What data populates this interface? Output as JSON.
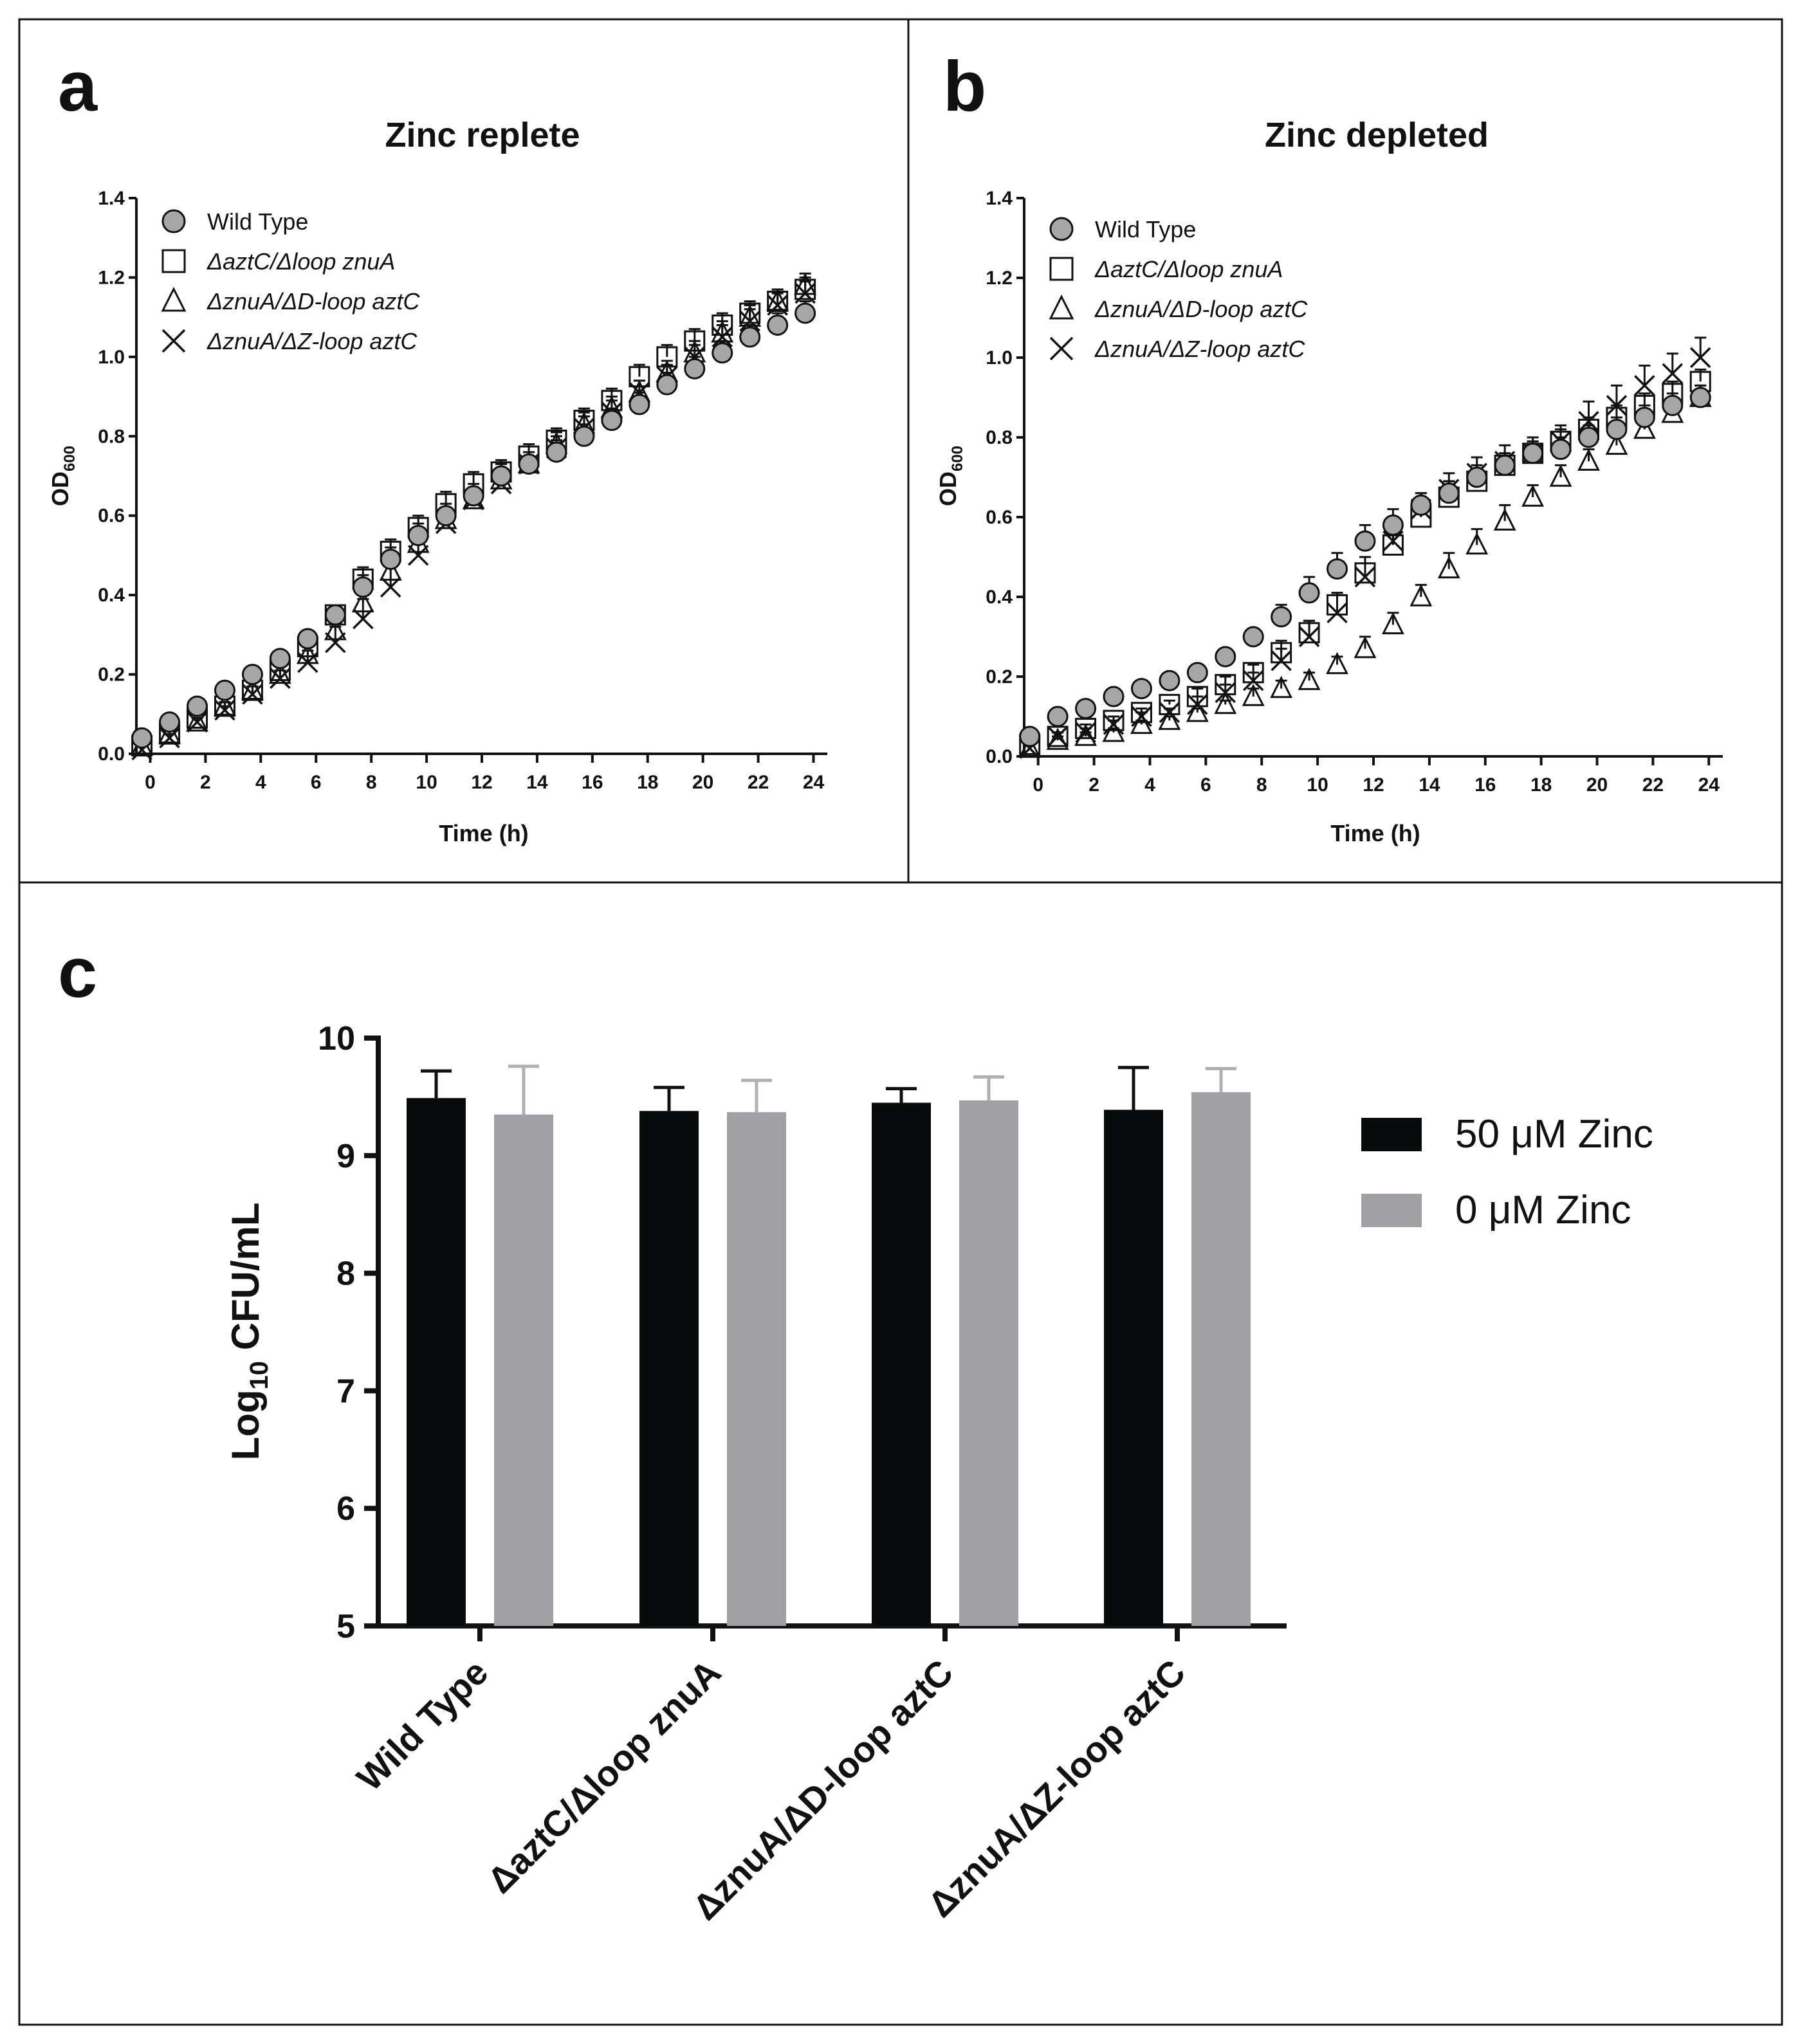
{
  "panels": {
    "a": "a",
    "b": "b",
    "c": "c"
  },
  "colors": {
    "wt_fill": "#a6a6a6",
    "bar50": "#070b0c",
    "bar0": "#a1a1a5",
    "err0": "#b0b0b0"
  },
  "line_legend": [
    {
      "symbol": "circle",
      "label": "Wild Type"
    },
    {
      "symbol": "square",
      "label": "ΔaztC/Δloop znuA"
    },
    {
      "symbol": "triangle",
      "label": "ΔznuA/ΔD-loop aztC"
    },
    {
      "symbol": "cross",
      "label": "ΔznuA/ΔZ-loop aztC"
    }
  ],
  "chart_data": [
    {
      "type": "scatter",
      "panel": "a",
      "title": "Zinc replete",
      "xlabel": "Time (h)",
      "ylabel_main": "OD",
      "ylabel_sub": "600",
      "xlim": [
        -0.5,
        24.5
      ],
      "ylim": [
        0,
        1.4
      ],
      "xticks": [
        0,
        2,
        4,
        6,
        8,
        10,
        12,
        14,
        16,
        18,
        20,
        22,
        24
      ],
      "yticks": [
        0.0,
        0.2,
        0.4,
        0.6,
        0.8,
        1.0,
        1.2,
        1.4
      ],
      "ytick_labels": [
        "0.0",
        "0.2",
        "0.4",
        "0.6",
        "0.8",
        "1.0",
        "1.2",
        "1.4"
      ],
      "x": [
        -0.3,
        0.7,
        1.7,
        2.7,
        3.7,
        4.7,
        5.7,
        6.7,
        7.7,
        8.7,
        9.7,
        10.7,
        11.7,
        12.7,
        13.7,
        14.7,
        15.7,
        16.7,
        17.7,
        18.7,
        19.7,
        20.7,
        21.7,
        22.7,
        23.7
      ],
      "series": [
        {
          "name": "Wild Type",
          "marker": "circle",
          "values": [
            0.04,
            0.08,
            0.12,
            0.16,
            0.2,
            0.24,
            0.29,
            0.35,
            0.42,
            0.49,
            0.55,
            0.6,
            0.65,
            0.7,
            0.73,
            0.76,
            0.8,
            0.84,
            0.88,
            0.93,
            0.97,
            1.01,
            1.05,
            1.08,
            1.11
          ],
          "err": [
            0.01,
            0.01,
            0.01,
            0.01,
            0.02,
            0.02,
            0.02,
            0.02,
            0.03,
            0.03,
            0.03,
            0.03,
            0.03,
            0.03,
            0.03,
            0.03,
            0.03,
            0.03,
            0.03,
            0.03,
            0.03,
            0.03,
            0.03,
            0.03,
            0.03
          ]
        },
        {
          "name": "ΔaztC/Δloop znuA",
          "marker": "square",
          "values": [
            0.02,
            0.05,
            0.09,
            0.12,
            0.16,
            0.21,
            0.27,
            0.35,
            0.44,
            0.51,
            0.57,
            0.63,
            0.68,
            0.71,
            0.75,
            0.79,
            0.84,
            0.89,
            0.95,
            1.0,
            1.04,
            1.08,
            1.11,
            1.14,
            1.17
          ],
          "err": [
            0.01,
            0.01,
            0.01,
            0.01,
            0.02,
            0.02,
            0.02,
            0.02,
            0.03,
            0.03,
            0.03,
            0.03,
            0.03,
            0.03,
            0.03,
            0.03,
            0.03,
            0.03,
            0.03,
            0.03,
            0.03,
            0.03,
            0.03,
            0.03,
            0.03
          ]
        },
        {
          "name": "ΔznuA/ΔD-loop aztC",
          "marker": "triangle",
          "values": [
            0.02,
            0.05,
            0.08,
            0.12,
            0.16,
            0.2,
            0.25,
            0.31,
            0.38,
            0.46,
            0.53,
            0.59,
            0.64,
            0.69,
            0.73,
            0.78,
            0.83,
            0.87,
            0.91,
            0.96,
            1.01,
            1.06,
            1.1,
            1.14,
            1.18
          ],
          "err": [
            0.01,
            0.01,
            0.01,
            0.01,
            0.02,
            0.02,
            0.02,
            0.02,
            0.03,
            0.03,
            0.03,
            0.03,
            0.03,
            0.03,
            0.03,
            0.03,
            0.03,
            0.03,
            0.03,
            0.03,
            0.03,
            0.03,
            0.03,
            0.03,
            0.03
          ]
        },
        {
          "name": "ΔznuA/ΔZ-loop aztC",
          "marker": "cross",
          "values": [
            0.01,
            0.04,
            0.08,
            0.11,
            0.15,
            0.19,
            0.23,
            0.28,
            0.34,
            0.42,
            0.5,
            0.58,
            0.64,
            0.68,
            0.73,
            0.77,
            0.82,
            0.86,
            0.91,
            0.95,
            1.0,
            1.05,
            1.09,
            1.13,
            1.16
          ],
          "err": [
            0.01,
            0.01,
            0.01,
            0.01,
            0.02,
            0.02,
            0.03,
            0.04,
            0.05,
            0.05,
            0.05,
            0.04,
            0.03,
            0.03,
            0.03,
            0.03,
            0.03,
            0.03,
            0.03,
            0.03,
            0.03,
            0.03,
            0.03,
            0.03,
            0.03
          ]
        }
      ]
    },
    {
      "type": "scatter",
      "panel": "b",
      "title": "Zinc depleted",
      "xlabel": "Time (h)",
      "ylabel_main": "OD",
      "ylabel_sub": "600",
      "xlim": [
        -0.5,
        24.5
      ],
      "ylim": [
        0,
        1.4
      ],
      "xticks": [
        0,
        2,
        4,
        6,
        8,
        10,
        12,
        14,
        16,
        18,
        20,
        22,
        24
      ],
      "yticks": [
        0.0,
        0.2,
        0.4,
        0.6,
        0.8,
        1.0,
        1.2,
        1.4
      ],
      "ytick_labels": [
        "0.0",
        "0.2",
        "0.4",
        "0.6",
        "0.8",
        "1.0",
        "1.2",
        "1.4"
      ],
      "x": [
        -0.3,
        0.7,
        1.7,
        2.7,
        3.7,
        4.7,
        5.7,
        6.7,
        7.7,
        8.7,
        9.7,
        10.7,
        11.7,
        12.7,
        13.7,
        14.7,
        15.7,
        16.7,
        17.7,
        18.7,
        19.7,
        20.7,
        21.7,
        22.7,
        23.7
      ],
      "series": [
        {
          "name": "Wild Type",
          "marker": "circle",
          "values": [
            0.05,
            0.1,
            0.12,
            0.15,
            0.17,
            0.19,
            0.21,
            0.25,
            0.3,
            0.35,
            0.41,
            0.47,
            0.54,
            0.58,
            0.63,
            0.66,
            0.7,
            0.73,
            0.76,
            0.77,
            0.8,
            0.82,
            0.85,
            0.88,
            0.9
          ],
          "err": [
            0.01,
            0.01,
            0.01,
            0.01,
            0.01,
            0.01,
            0.02,
            0.02,
            0.02,
            0.03,
            0.04,
            0.04,
            0.04,
            0.04,
            0.03,
            0.03,
            0.03,
            0.03,
            0.03,
            0.03,
            0.03,
            0.03,
            0.03,
            0.03,
            0.03
          ]
        },
        {
          "name": "ΔaztC/Δloop znuA",
          "marker": "square",
          "values": [
            0.03,
            0.05,
            0.07,
            0.09,
            0.11,
            0.13,
            0.15,
            0.18,
            0.21,
            0.26,
            0.31,
            0.38,
            0.46,
            0.53,
            0.6,
            0.65,
            0.69,
            0.73,
            0.76,
            0.79,
            0.82,
            0.85,
            0.88,
            0.91,
            0.94
          ],
          "err": [
            0.01,
            0.01,
            0.01,
            0.01,
            0.01,
            0.01,
            0.02,
            0.02,
            0.02,
            0.03,
            0.03,
            0.03,
            0.04,
            0.04,
            0.04,
            0.04,
            0.03,
            0.03,
            0.03,
            0.03,
            0.03,
            0.03,
            0.03,
            0.03,
            0.03
          ]
        },
        {
          "name": "ΔznuA/ΔD-loop aztC",
          "marker": "triangle",
          "values": [
            0.02,
            0.04,
            0.05,
            0.06,
            0.08,
            0.09,
            0.11,
            0.13,
            0.15,
            0.17,
            0.19,
            0.23,
            0.27,
            0.33,
            0.4,
            0.47,
            0.53,
            0.59,
            0.65,
            0.7,
            0.74,
            0.78,
            0.82,
            0.86,
            0.9
          ],
          "err": [
            0.01,
            0.01,
            0.01,
            0.01,
            0.01,
            0.01,
            0.01,
            0.01,
            0.02,
            0.02,
            0.02,
            0.02,
            0.03,
            0.03,
            0.03,
            0.04,
            0.04,
            0.04,
            0.03,
            0.03,
            0.03,
            0.03,
            0.03,
            0.03,
            0.03
          ]
        },
        {
          "name": "ΔznuA/ΔZ-loop aztC",
          "marker": "cross",
          "values": [
            0.02,
            0.05,
            0.06,
            0.08,
            0.1,
            0.11,
            0.13,
            0.16,
            0.19,
            0.24,
            0.3,
            0.36,
            0.45,
            0.54,
            0.62,
            0.67,
            0.71,
            0.74,
            0.76,
            0.79,
            0.84,
            0.88,
            0.93,
            0.96,
            1.0
          ],
          "err": [
            0.01,
            0.01,
            0.01,
            0.01,
            0.01,
            0.01,
            0.02,
            0.02,
            0.02,
            0.03,
            0.04,
            0.05,
            0.05,
            0.05,
            0.04,
            0.04,
            0.04,
            0.04,
            0.04,
            0.04,
            0.05,
            0.05,
            0.05,
            0.05,
            0.05
          ]
        }
      ]
    },
    {
      "type": "bar",
      "panel": "c",
      "ylabel_main": "Log",
      "ylabel_sub": "10",
      "ylabel_rest": " CFU/mL",
      "ylim": [
        5,
        10
      ],
      "yticks": [
        5,
        6,
        7,
        8,
        9,
        10
      ],
      "ytick_labels": [
        "5",
        "6",
        "7",
        "8",
        "9",
        "10"
      ],
      "categories": [
        "Wild Type",
        "ΔaztC/Δloop znuA",
        "ΔznuA/ΔD-loop aztC",
        "ΔznuA/ΔZ-loop aztC"
      ],
      "series": [
        {
          "name": "50 μM Zinc",
          "values": [
            9.49,
            9.38,
            9.45,
            9.39
          ],
          "err": [
            0.23,
            0.2,
            0.12,
            0.36
          ]
        },
        {
          "name": "0 μM Zinc",
          "values": [
            9.35,
            9.37,
            9.47,
            9.54
          ],
          "err": [
            0.41,
            0.27,
            0.2,
            0.2
          ]
        }
      ],
      "legend_position": "right"
    }
  ]
}
